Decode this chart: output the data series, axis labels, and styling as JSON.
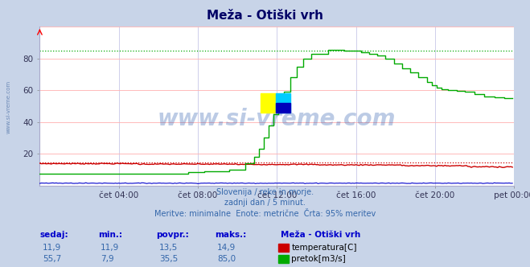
{
  "title": "Meža - Otiški vrh",
  "subtitle_lines": [
    "Slovenija / reke in morje.",
    "zadnji dan / 5 minut.",
    "Meritve: minimalne  Enote: metrične  Črta: 95% meritev"
  ],
  "bg_color": "#c8d4e8",
  "plot_bg_color": "#ffffff",
  "grid_color_h": "#ffb0b0",
  "grid_color_v": "#c8c8e8",
  "x_tick_labels": [
    "čet 04:00",
    "čet 08:00",
    "čet 12:00",
    "čet 16:00",
    "čet 20:00",
    "pet 00:00"
  ],
  "x_tick_positions": [
    48,
    96,
    144,
    192,
    240,
    288
  ],
  "ylim": [
    0,
    100
  ],
  "yticks": [
    20,
    40,
    60,
    80
  ],
  "xlim": [
    0,
    288
  ],
  "temp_color": "#cc0000",
  "flow_color": "#00aa00",
  "height_color": "#0000cc",
  "watermark": "www.si-vreme.com",
  "watermark_color": "#2255aa",
  "watermark_alpha": 0.3,
  "watermark_fontsize": 20,
  "sidebar_text": "www.si-vreme.com",
  "sidebar_color": "#5577aa",
  "table_headers": [
    "sedaj:",
    "min.:",
    "povpr.:",
    "maks.:",
    "Meža - Otiški vrh"
  ],
  "table_row1": [
    "11,9",
    "11,9",
    "13,5",
    "14,9",
    "temperatura[C]"
  ],
  "table_row2": [
    "55,7",
    "7,9",
    "35,5",
    "85,0",
    "pretok[m3/s]"
  ],
  "temp_95pct": 14.5,
  "flow_95pct": 85.0,
  "n_points": 288,
  "logo_colors": [
    "#ffff00",
    "#00ccff",
    "#0000cc"
  ],
  "arrow_color": "#cc0000",
  "title_color": "#000066",
  "subtitle_color": "#3366aa",
  "table_header_color": "#0000cc",
  "table_value_color": "#3366aa",
  "temp_rect_color": "#cc0000",
  "flow_rect_color": "#00aa00",
  "legend_text_color": "#000000"
}
